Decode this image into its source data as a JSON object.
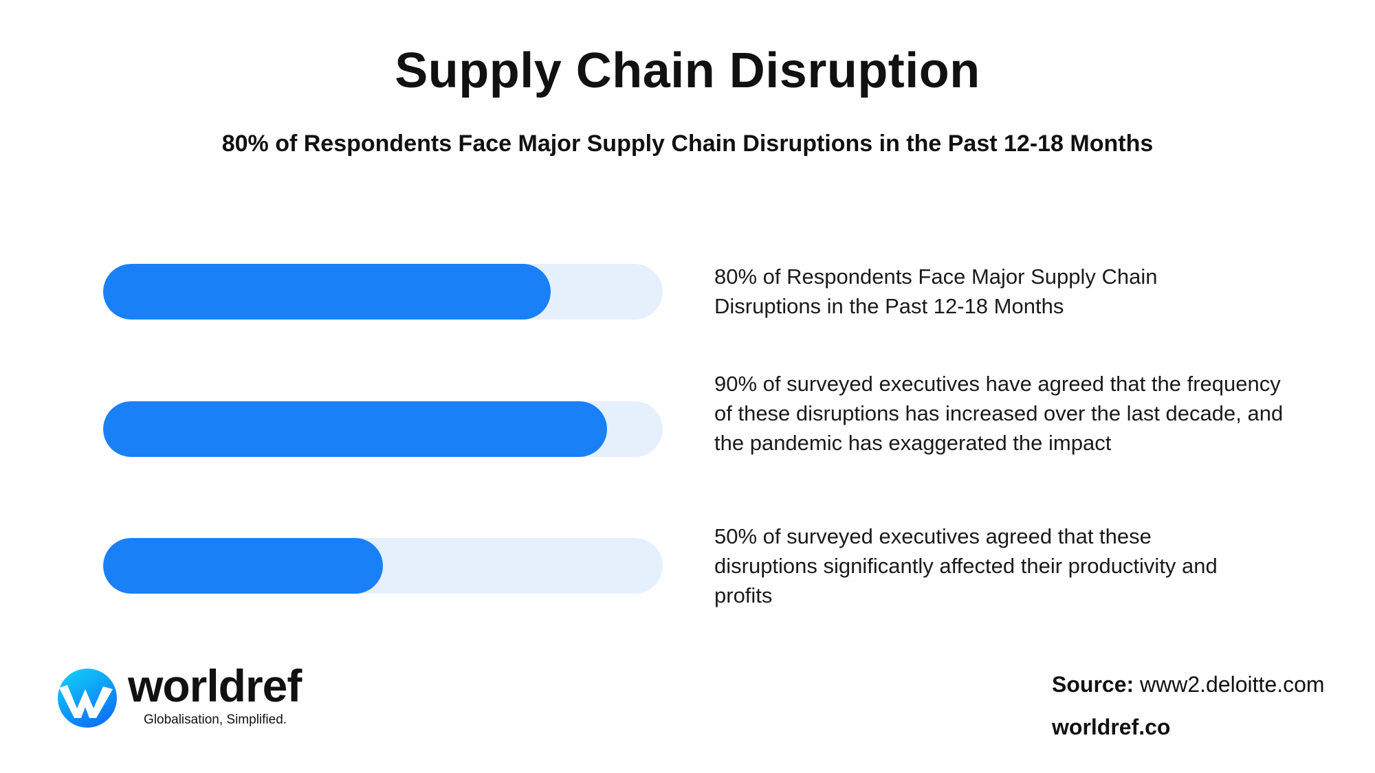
{
  "title": "Supply Chain Disruption",
  "subtitle": "80% of Respondents Face Major Supply Chain Disruptions in the Past 12-18 Months",
  "chart_data": {
    "type": "bar",
    "orientation": "horizontal-progress",
    "values": [
      80,
      90,
      50
    ],
    "ylim": [
      0,
      100
    ],
    "fill_color": "#1a80f8",
    "track_color": "#e6f0fd",
    "descriptions": [
      "80% of Respondents Face Major Supply Chain Disruptions in the Past 12-18 Months",
      "90% of surveyed executives have agreed that the frequency of these disruptions has increased over the last decade, and the pandemic has exaggerated the impact",
      "50% of surveyed executives agreed that these disruptions significantly affected their productivity and profits"
    ]
  },
  "logo": {
    "name": "worldref",
    "tagline": "Globalisation, Simplified."
  },
  "footer": {
    "source_label": "Source:",
    "source_value": "www2.deloitte.com",
    "site": "worldref.co"
  }
}
